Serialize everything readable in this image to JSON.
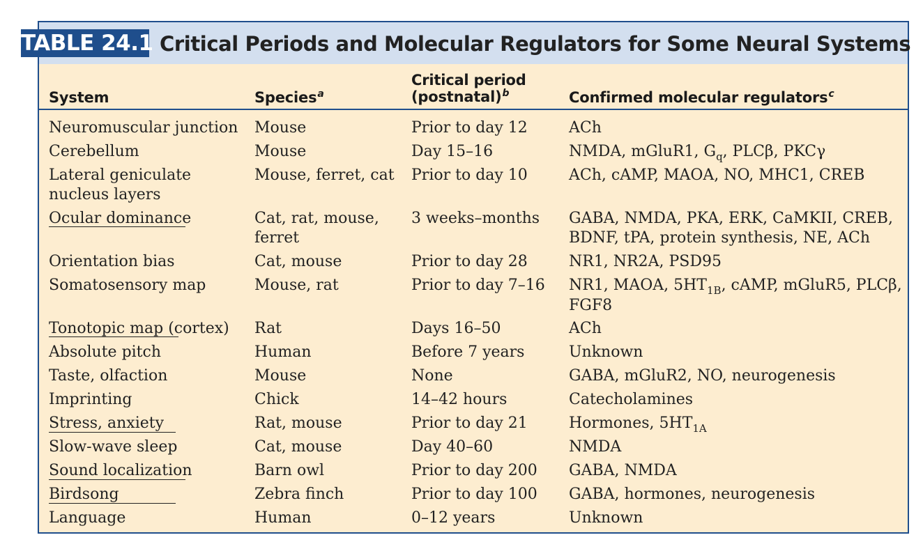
{
  "table_label": "TABLE 24.1",
  "title": "Critical Periods and Molecular Regulators for Some Neural Systems",
  "headers": {
    "system": "System",
    "species": "Species",
    "species_sup": "a",
    "period_line1": "Critical period",
    "period_line2": "(postnatal)",
    "period_sup": "b",
    "regulators": "Confirmed molecular regulators",
    "regulators_sup": "c"
  },
  "rows": [
    {
      "system": "Neuromuscular junction",
      "species": "Mouse",
      "period": "Prior to day 12",
      "regulators": "ACh"
    },
    {
      "system": "Cerebellum",
      "species": "Mouse",
      "period": "Day 15–16",
      "regulators": "NMDA, mGluR1, G_q, PLCβ, PKCγ"
    },
    {
      "system": "Lateral geniculate\n  nucleus layers",
      "species": "Mouse, ferret, cat",
      "period": "Prior to day 10",
      "regulators": "ACh, cAMP, MAOA, NO, MHC1, CREB"
    },
    {
      "system": "Ocular dominance",
      "species": "Cat, rat, mouse,\n  ferret",
      "period": "3 weeks–months",
      "regulators": "GABA, NMDA, PKA, ERK, CaMKII, CREB,\n  BDNF, tPA, protein synthesis, NE, ACh"
    },
    {
      "system": "Orientation bias",
      "species": "Cat, mouse",
      "period": "Prior to day 28",
      "regulators": "NR1, NR2A, PSD95"
    },
    {
      "system": "Somatosensory map",
      "species": "Mouse, rat",
      "period": "Prior to day 7–16",
      "regulators": "NR1, MAOA, 5HT_1B, cAMP, mGluR5, PLCβ,\n  FGF8"
    },
    {
      "system": "Tonotopic map (cortex)",
      "species": "Rat",
      "period": "Days 16–50",
      "regulators": "ACh"
    },
    {
      "system": "Absolute pitch",
      "species": "Human",
      "period": "Before 7 years",
      "regulators": "Unknown"
    },
    {
      "system": "Taste, olfaction",
      "species": "Mouse",
      "period": "None",
      "regulators": "GABA, mGluR2, NO, neurogenesis"
    },
    {
      "system": "Imprinting",
      "species": "Chick",
      "period": "14–42 hours",
      "regulators": "Catecholamines"
    },
    {
      "system": "Stress, anxiety",
      "species": "Rat, mouse",
      "period": "Prior to day 21",
      "regulators": "Hormones, 5HT_1A"
    },
    {
      "system": "Slow-wave sleep",
      "species": "Cat, mouse",
      "period": "Day 40–60",
      "regulators": "NMDA"
    },
    {
      "system": "Sound localization",
      "species": "Barn owl",
      "period": "Prior to day 200",
      "regulators": "GABA, NMDA"
    },
    {
      "system": "Birdsong",
      "species": "Zebra finch",
      "period": "Prior to day 100",
      "regulators": "GABA, hormones, neurogenesis"
    },
    {
      "system": "Language",
      "species": "Human",
      "period": "0–12 years",
      "regulators": "Unknown"
    }
  ],
  "colors": {
    "accent": "#1f4e8c",
    "title_band": "#d3dfef",
    "body_background": "#fdedd0"
  }
}
